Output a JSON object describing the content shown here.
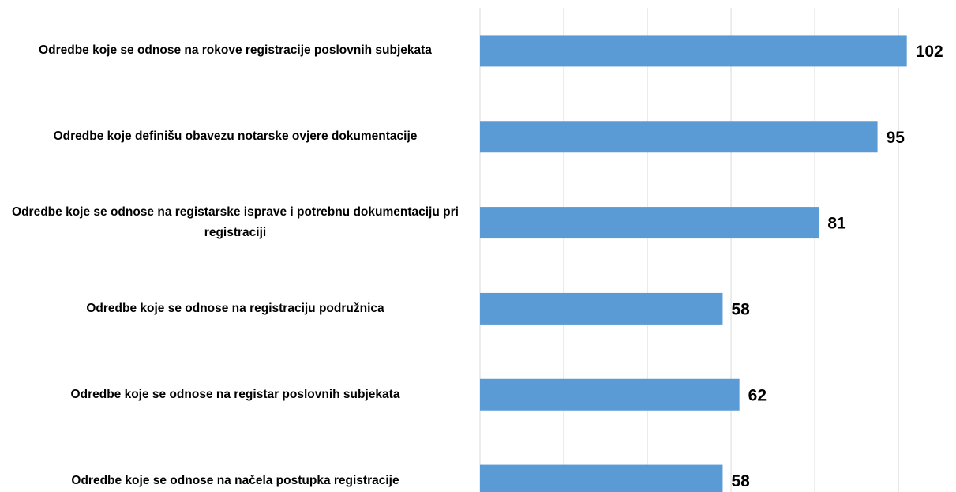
{
  "chart_data": {
    "type": "bar",
    "orientation": "horizontal",
    "categories": [
      "Odredbe koje se odnose na rokove registracije poslovnih subjekata",
      "Odredbe koje definišu obavezu notarske ovjere dokumentacije",
      "Odredbe koje se odnose na registarske isprave i potrebnu dokumentaciju pri registraciji",
      "Odredbe koje se odnose na registraciju podružnica",
      "Odredbe koje se odnose na registar poslovnih subjekata",
      "Odredbe koje se odnose na načela postupka registracije"
    ],
    "values": [
      102,
      95,
      81,
      58,
      62,
      58
    ],
    "color": "#5b9bd5",
    "xlim": [
      0,
      113
    ],
    "xticks": [
      0,
      20,
      40,
      60,
      80,
      100
    ],
    "grid": true
  }
}
